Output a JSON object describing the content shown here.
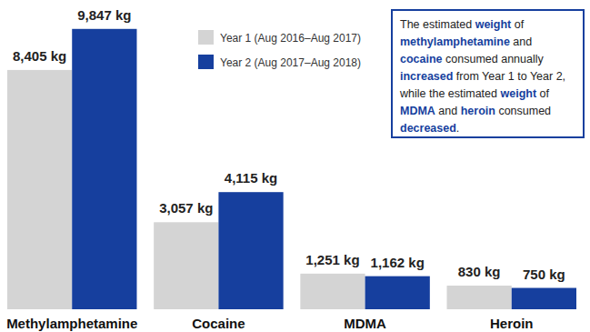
{
  "chart_data": {
    "type": "bar",
    "categories": [
      "Methylamphetamine",
      "Cocaine",
      "MDMA",
      "Heroin"
    ],
    "series": [
      {
        "name": "Year 1 (Aug 2016–Aug 2017)",
        "color": "#d4d4d4",
        "values": [
          8405,
          3057,
          1251,
          830
        ],
        "value_labels": [
          "8,405 kg",
          "3,057 kg",
          "1,251 kg",
          "830 kg"
        ]
      },
      {
        "name": "Year 2 (Aug 2017–Aug 2018)",
        "color": "#163f9e",
        "values": [
          9847,
          4115,
          1162,
          750
        ],
        "value_labels": [
          "9,847 kg",
          "4,115 kg",
          "1,162 kg",
          "750 kg"
        ]
      }
    ],
    "ylim": [
      0,
      10000
    ],
    "data_labels": true,
    "tick_labels": "x",
    "legend": "top",
    "annotation": [
      "The estimated ",
      "weight",
      " of ",
      "methylamphetamine",
      " and ",
      "cocaine",
      " consumed annually ",
      "increased",
      " from Year 1 to Year 2, while the estimated ",
      "weight",
      " of ",
      "MDMA",
      " and ",
      "heroin",
      " consumed ",
      "decreased",
      "."
    ]
  }
}
